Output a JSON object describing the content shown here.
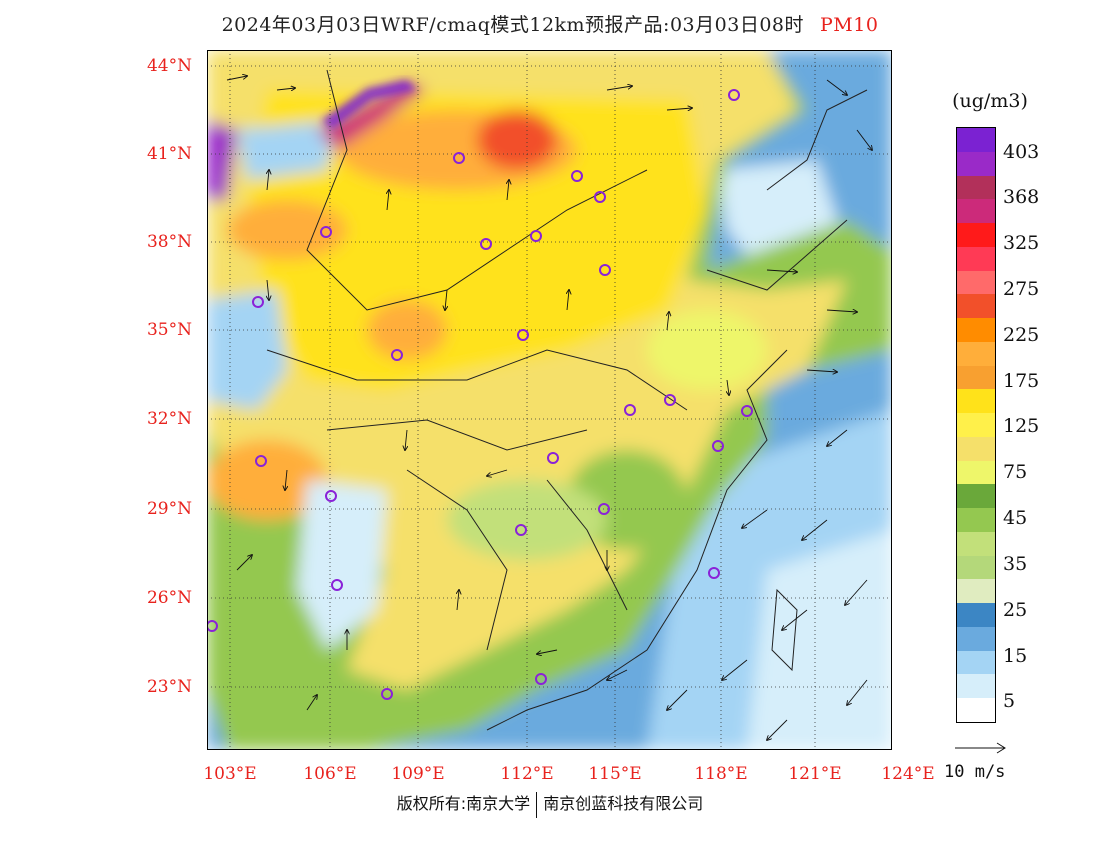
{
  "title": {
    "main": "2024年03月03日WRF/cmaq模式12km预报产品:03月03日08时",
    "pollutant": "PM10"
  },
  "axes": {
    "lat_labels": [
      "44°N",
      "41°N",
      "38°N",
      "35°N",
      "32°N",
      "29°N",
      "26°N",
      "23°N"
    ],
    "lon_labels": [
      "103°E",
      "106°E",
      "109°E",
      "112°E",
      "115°E",
      "118°E",
      "121°E",
      "124°E"
    ]
  },
  "legend": {
    "unit": "(ug/m3)",
    "labels": [
      "403",
      "368",
      "325",
      "275",
      "225",
      "175",
      "125",
      "75",
      "45",
      "35",
      "25",
      "15",
      "5"
    ],
    "colors": [
      "#7b22d2",
      "#9a2ac8",
      "#b2305a",
      "#cc2a7a",
      "#ff1a1a",
      "#ff3a55",
      "#ff6a6a",
      "#f2502a",
      "#ff8c00",
      "#ffae3a",
      "#f8a030",
      "#ffe21a",
      "#fff04a",
      "#f5e06a",
      "#eef66a",
      "#6aa83a",
      "#94c850",
      "#c2e07a",
      "#b4d87a",
      "#e0ecc0",
      "#3c86c4",
      "#6aaade",
      "#a4d4f4",
      "#d6eefa",
      "#ffffff"
    ]
  },
  "wind_scale": {
    "label": "10 m/s"
  },
  "copyright": {
    "left": "版权所有:南京大学",
    "right": "南京创蓝科技有限公司"
  }
}
